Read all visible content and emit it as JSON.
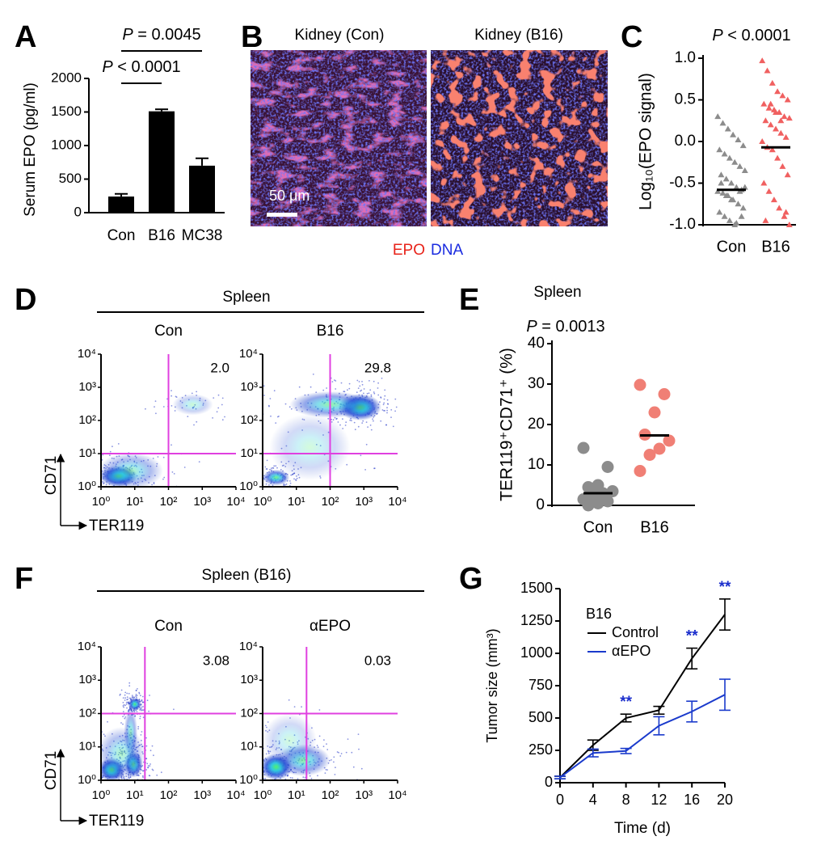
{
  "chart_data": [
    {
      "type": "bar",
      "panel": "A",
      "ylabel": "Serum EPO (pg/ml)",
      "categories": [
        "Con",
        "B16",
        "MC38"
      ],
      "values": [
        240,
        1510,
        700
      ],
      "errors": [
        40,
        30,
        110
      ],
      "color": "#000000",
      "ylim": [
        0,
        2000
      ],
      "yticks": [
        0,
        500,
        1000,
        1500,
        2000
      ],
      "comparisons": [
        {
          "from": 0,
          "to": 1,
          "label": "P < 0.0001"
        },
        {
          "from": 0,
          "to": 2,
          "label": "P = 0.0045"
        }
      ]
    },
    {
      "type": "strip",
      "panel": "C",
      "annotation": "P < 0.0001",
      "ylabel": "Log₁₀(EPO signal)",
      "marker": "triangle",
      "ylim": [
        -1,
        1
      ],
      "yticks": [
        {
          "value": -1,
          "label": "-1.0"
        },
        -0.5,
        {
          "value": 0,
          "label": "0.0"
        },
        0.5,
        {
          "value": 1,
          "label": "1.0"
        }
      ],
      "series": [
        {
          "name": "Con",
          "color": "#8c8c8c",
          "center": -0.58,
          "values": [
            0.3,
            0.22,
            0.15,
            0.08,
            0.02,
            -0.05,
            -0.1,
            -0.15,
            -0.2,
            -0.25,
            -0.3,
            -0.35,
            -0.4,
            -0.45,
            -0.5,
            -0.55,
            -0.58,
            -0.6,
            -0.62,
            -0.65,
            -0.7,
            -0.75,
            -0.8,
            -0.85,
            -0.9,
            -0.95,
            -1.0,
            -0.6,
            -0.55,
            -0.5,
            -0.65,
            -0.7,
            -0.98,
            -0.9
          ]
        },
        {
          "name": "B16",
          "color": "#f06060",
          "center": -0.07,
          "values": [
            0.97,
            0.85,
            0.7,
            0.6,
            0.55,
            0.5,
            0.45,
            0.4,
            0.38,
            0.35,
            0.3,
            0.28,
            0.25,
            0.2,
            0.15,
            0.1,
            0.05,
            0,
            -0.07,
            -0.1,
            -0.2,
            -0.3,
            -0.4,
            -0.5,
            -0.6,
            -0.7,
            -0.8,
            -0.9,
            -1.0,
            -0.95,
            0.45,
            0.35,
            0.25,
            -0.85
          ]
        }
      ]
    },
    {
      "type": "flow",
      "panel": "D",
      "title": "Spleen",
      "xlabel": "TER119",
      "ylabel": "CD71",
      "log": true,
      "gate_color": "#e040e0",
      "xlim": [
        1,
        10000
      ],
      "ylim": [
        1,
        10000
      ],
      "xticks": [
        {
          "value": 1,
          "label": "10⁰"
        },
        {
          "value": 10,
          "label": "10¹"
        },
        {
          "value": 100,
          "label": "10²"
        },
        {
          "value": 1000,
          "label": "10³"
        },
        {
          "value": 10000,
          "label": "10⁴"
        }
      ],
      "yticks": [
        {
          "value": 1,
          "label": "10⁰"
        },
        {
          "value": 10,
          "label": "10¹"
        },
        {
          "value": 100,
          "label": "10²"
        },
        {
          "value": 1000,
          "label": "10³"
        },
        {
          "value": 10000,
          "label": "10⁴"
        }
      ],
      "plots": [
        {
          "name": "Con",
          "x_gate": 100,
          "y_gate": 10,
          "quadrant_label": "2.0"
        },
        {
          "name": "B16",
          "x_gate": 100,
          "y_gate": 10,
          "quadrant_label": "29.8"
        }
      ]
    },
    {
      "type": "strip",
      "panel": "E",
      "title": "Spleen",
      "annotation": "P = 0.0013",
      "ylabel": "TER119⁺CD71⁺ (%)",
      "marker": "circle",
      "ylim": [
        0,
        40
      ],
      "yticks": [
        0,
        10,
        20,
        30,
        40
      ],
      "series": [
        {
          "name": "Con",
          "color": "#8c8c8c",
          "center": 3,
          "values": [
            14.2,
            9.5,
            5,
            4.5,
            3.5,
            3,
            2.5,
            1.5,
            1,
            0.5,
            0
          ]
        },
        {
          "name": "B16",
          "color": "#f07f75",
          "center": 17.3,
          "values": [
            29.8,
            27.5,
            23,
            17.5,
            16,
            14,
            12.5,
            8.5
          ]
        }
      ]
    },
    {
      "type": "flow",
      "panel": "F",
      "title": "Spleen (B16)",
      "xlabel": "TER119",
      "ylabel": "CD71",
      "log": true,
      "gate_color": "#e040e0",
      "xlim": [
        1,
        10000
      ],
      "ylim": [
        1,
        10000
      ],
      "xticks": [
        {
          "value": 1,
          "label": "10⁰"
        },
        {
          "value": 10,
          "label": "10¹"
        },
        {
          "value": 100,
          "label": "10²"
        },
        {
          "value": 1000,
          "label": "10³"
        },
        {
          "value": 10000,
          "label": "10⁴"
        }
      ],
      "yticks": [
        {
          "value": 1,
          "label": "10⁰"
        },
        {
          "value": 10,
          "label": "10¹"
        },
        {
          "value": 100,
          "label": "10²"
        },
        {
          "value": 1000,
          "label": "10³"
        },
        {
          "value": 10000,
          "label": "10⁴"
        }
      ],
      "plots": [
        {
          "name": "Con",
          "x_gate": 20,
          "y_gate": 100,
          "quadrant_label": "3.08"
        },
        {
          "name": "αEPO",
          "x_gate": 20,
          "y_gate": 100,
          "quadrant_label": "0.03"
        }
      ]
    },
    {
      "type": "line",
      "panel": "G",
      "legend_title": "B16",
      "xlabel": "Time (d)",
      "ylabel": "Tumor size (mm³)",
      "x": [
        0,
        4,
        8,
        12,
        16,
        20
      ],
      "xlim": [
        0,
        20
      ],
      "xticks": [
        0,
        4,
        8,
        12,
        16,
        20
      ],
      "ylim": [
        0,
        1500
      ],
      "yticks": [
        0,
        250,
        500,
        750,
        1000,
        1250,
        1500
      ],
      "series": [
        {
          "name": "Control",
          "color": "#000000",
          "values": [
            40,
            290,
            500,
            560,
            960,
            1300
          ],
          "errors": [
            10,
            40,
            30,
            30,
            80,
            120
          ]
        },
        {
          "name": "αEPO",
          "color": "#1a3acc",
          "values": [
            40,
            230,
            245,
            440,
            550,
            680
          ],
          "errors": [
            10,
            30,
            20,
            70,
            80,
            120
          ]
        }
      ],
      "annotation_color": "#1a2dcc",
      "annotations": [
        {
          "x": 8,
          "text": "**"
        },
        {
          "x": 16,
          "text": "**"
        },
        {
          "x": 20,
          "text": "**"
        }
      ]
    }
  ],
  "panel_b": {
    "panel": "B",
    "images": [
      {
        "title": "Kidney (Con)"
      },
      {
        "title": "Kidney (B16)"
      }
    ],
    "scale_bar": "50 μm",
    "legend": [
      {
        "name": "EPO",
        "color": "#e8231a"
      },
      {
        "name": "DNA",
        "color": "#1a2be0"
      }
    ]
  }
}
